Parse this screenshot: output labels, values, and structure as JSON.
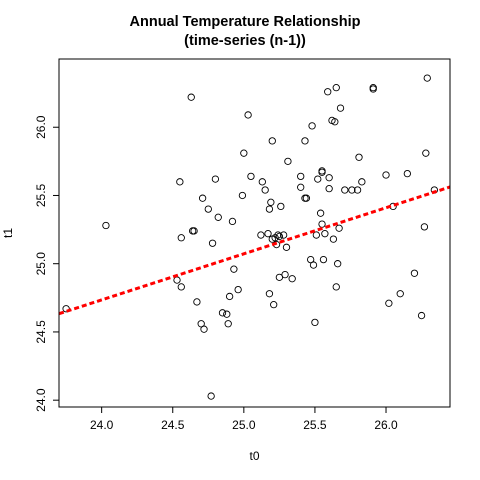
{
  "chart_data": {
    "type": "scatter",
    "title": "Annual Temperature Relationship",
    "subtitle": "(time-series (n-1))",
    "xlabel": "t0",
    "ylabel": "t1",
    "xlim": [
      23.7,
      26.45
    ],
    "ylim": [
      23.95,
      26.5
    ],
    "x_ticks": [
      24.0,
      24.5,
      25.0,
      25.5,
      26.0
    ],
    "x_tick_labels": [
      "24.0",
      "24.5",
      "25.0",
      "25.5",
      "26.0"
    ],
    "y_ticks": [
      24.0,
      24.5,
      25.0,
      25.5,
      26.0
    ],
    "y_tick_labels": [
      "24.0",
      "24.5",
      "25.0",
      "25.5",
      "26.0"
    ],
    "grid": false,
    "legend": "none",
    "points": [
      [
        23.75,
        24.67
      ],
      [
        24.03,
        25.28
      ],
      [
        24.53,
        24.88
      ],
      [
        24.55,
        25.6
      ],
      [
        24.56,
        25.19
      ],
      [
        24.56,
        24.83
      ],
      [
        24.63,
        26.22
      ],
      [
        24.64,
        25.24
      ],
      [
        24.65,
        25.24
      ],
      [
        24.67,
        24.72
      ],
      [
        24.7,
        24.56
      ],
      [
        24.71,
        25.48
      ],
      [
        24.72,
        24.52
      ],
      [
        24.75,
        25.4
      ],
      [
        24.77,
        24.03
      ],
      [
        24.78,
        25.15
      ],
      [
        24.8,
        25.62
      ],
      [
        24.82,
        25.34
      ],
      [
        24.85,
        24.64
      ],
      [
        24.88,
        24.63
      ],
      [
        24.89,
        24.56
      ],
      [
        24.9,
        24.76
      ],
      [
        24.92,
        25.31
      ],
      [
        24.93,
        24.96
      ],
      [
        24.96,
        24.81
      ],
      [
        24.99,
        25.5
      ],
      [
        25.0,
        25.81
      ],
      [
        25.03,
        26.09
      ],
      [
        25.05,
        25.64
      ],
      [
        25.12,
        25.21
      ],
      [
        25.13,
        25.6
      ],
      [
        25.15,
        25.54
      ],
      [
        25.17,
        25.22
      ],
      [
        25.18,
        25.4
      ],
      [
        25.18,
        24.78
      ],
      [
        25.19,
        25.45
      ],
      [
        25.2,
        25.9
      ],
      [
        25.2,
        25.18
      ],
      [
        25.21,
        24.7
      ],
      [
        25.22,
        25.19
      ],
      [
        25.23,
        25.14
      ],
      [
        25.24,
        25.21
      ],
      [
        25.25,
        25.2
      ],
      [
        25.25,
        24.9
      ],
      [
        25.26,
        25.42
      ],
      [
        25.28,
        25.21
      ],
      [
        25.29,
        24.92
      ],
      [
        25.3,
        25.12
      ],
      [
        25.31,
        25.75
      ],
      [
        25.34,
        24.89
      ],
      [
        25.4,
        25.64
      ],
      [
        25.4,
        25.56
      ],
      [
        25.43,
        25.9
      ],
      [
        25.43,
        25.48
      ],
      [
        25.44,
        25.48
      ],
      [
        25.47,
        25.03
      ],
      [
        25.48,
        26.01
      ],
      [
        25.49,
        24.99
      ],
      [
        25.5,
        24.57
      ],
      [
        25.51,
        25.21
      ],
      [
        25.52,
        25.62
      ],
      [
        25.54,
        25.37
      ],
      [
        25.55,
        25.67
      ],
      [
        25.55,
        25.68
      ],
      [
        25.55,
        25.29
      ],
      [
        25.56,
        25.03
      ],
      [
        25.57,
        25.22
      ],
      [
        25.59,
        26.26
      ],
      [
        25.6,
        25.63
      ],
      [
        25.6,
        25.55
      ],
      [
        25.62,
        26.05
      ],
      [
        25.63,
        25.18
      ],
      [
        25.64,
        26.04
      ],
      [
        25.65,
        26.29
      ],
      [
        25.65,
        24.83
      ],
      [
        25.66,
        25.0
      ],
      [
        25.67,
        25.26
      ],
      [
        25.68,
        26.14
      ],
      [
        25.71,
        25.54
      ],
      [
        25.76,
        25.54
      ],
      [
        25.8,
        25.54
      ],
      [
        25.81,
        25.78
      ],
      [
        25.83,
        25.6
      ],
      [
        25.91,
        26.29
      ],
      [
        25.91,
        26.28
      ],
      [
        26.0,
        25.65
      ],
      [
        26.02,
        24.71
      ],
      [
        26.05,
        25.42
      ],
      [
        26.1,
        24.78
      ],
      [
        26.15,
        25.66
      ],
      [
        26.2,
        24.93
      ],
      [
        26.25,
        24.62
      ],
      [
        26.27,
        25.27
      ],
      [
        26.28,
        25.81
      ],
      [
        26.29,
        26.36
      ],
      [
        26.34,
        25.54
      ]
    ],
    "fit_line": {
      "type": "dashed",
      "color": "#ff0000",
      "intercept": 16.63,
      "slope": 0.3377
    },
    "colors": {
      "points": "#000000",
      "fit_line": "#ff0000",
      "frame": "#000000"
    }
  }
}
